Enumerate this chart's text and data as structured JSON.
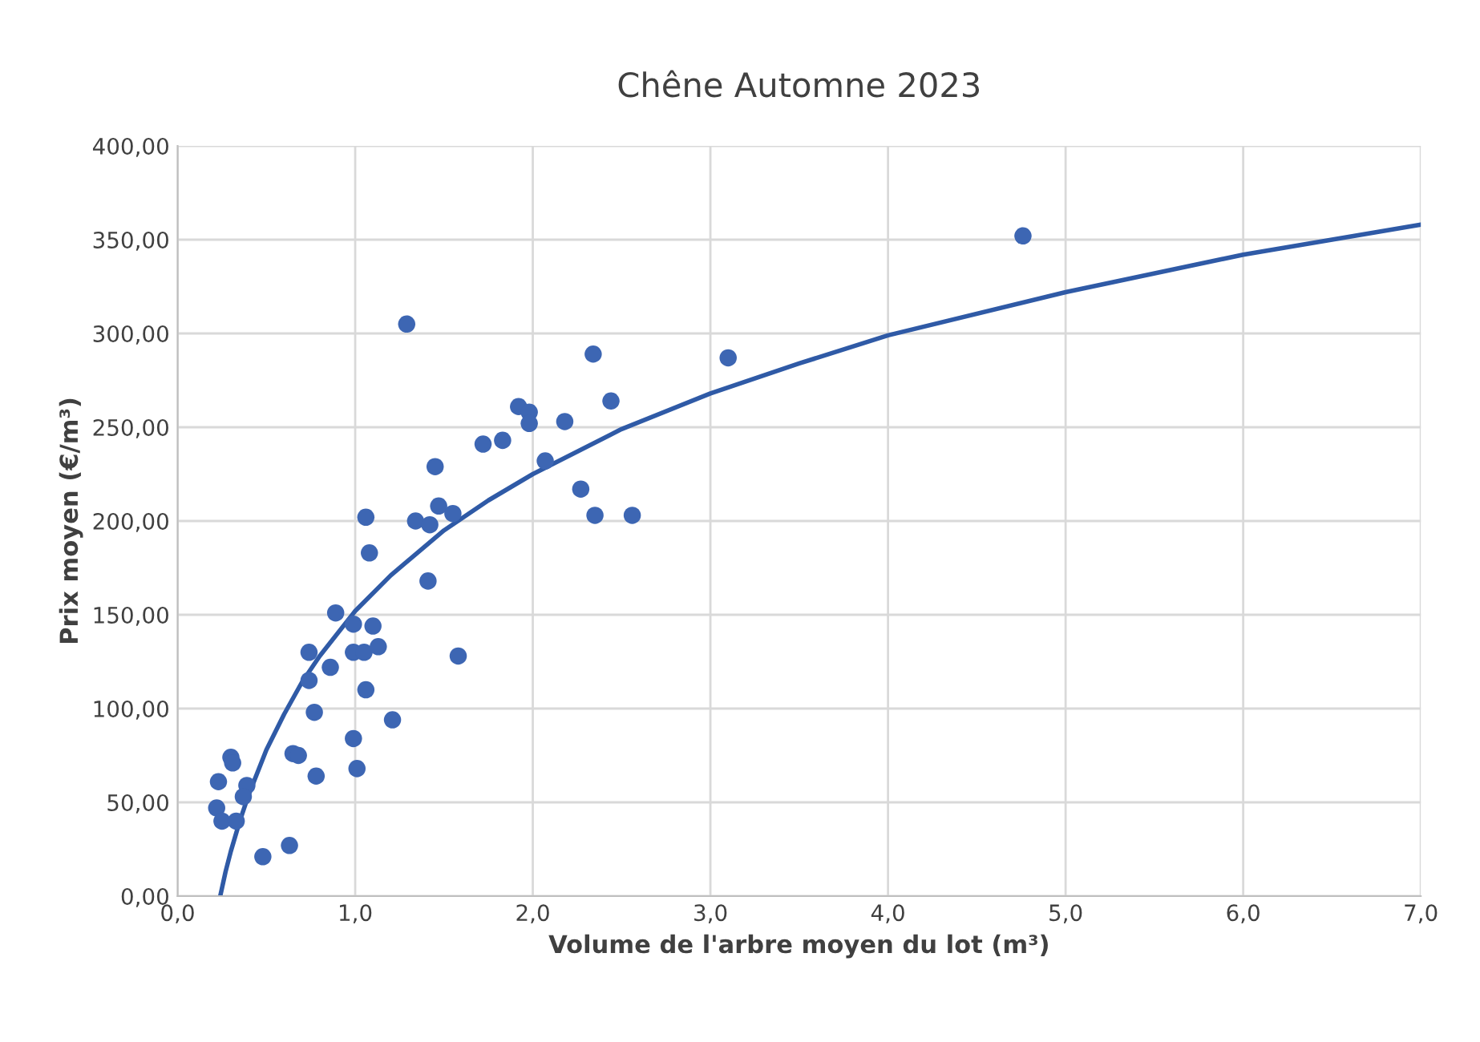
{
  "chart_data": {
    "type": "scatter",
    "title": "Chêne Automne 2023",
    "xlabel": "Volume de l'arbre moyen du lot (m³)",
    "ylabel": "Prix moyen (€/m³)",
    "xlim": [
      0,
      7
    ],
    "ylim": [
      0,
      400
    ],
    "xticks": [
      {
        "value": 0,
        "label": "0,0"
      },
      {
        "value": 1,
        "label": "1,0"
      },
      {
        "value": 2,
        "label": "2,0"
      },
      {
        "value": 3,
        "label": "3,0"
      },
      {
        "value": 4,
        "label": "4,0"
      },
      {
        "value": 5,
        "label": "5,0"
      },
      {
        "value": 6,
        "label": "6,0"
      },
      {
        "value": 7,
        "label": "7,0"
      }
    ],
    "yticks": [
      {
        "value": 0,
        "label": "0,00"
      },
      {
        "value": 50,
        "label": "50,00"
      },
      {
        "value": 100,
        "label": "100,00"
      },
      {
        "value": 150,
        "label": "150,00"
      },
      {
        "value": 200,
        "label": "200,00"
      },
      {
        "value": 250,
        "label": "250,00"
      },
      {
        "value": 300,
        "label": "300,00"
      },
      {
        "value": 350,
        "label": "350,00"
      },
      {
        "value": 400,
        "label": "400,00"
      }
    ],
    "grid": true,
    "marker": "circle",
    "series": [
      {
        "color": "#3d66b3",
        "x": [
          1.06,
          1.08,
          1.41,
          1.34,
          1.42,
          1.47,
          1.55,
          1.45,
          1.58,
          0.89,
          0.99,
          1.1,
          0.74,
          0.86,
          0.99,
          1.05,
          1.13,
          0.74,
          1.06,
          0.77,
          1.21,
          0.3,
          0.31,
          0.65,
          0.68,
          0.78,
          0.99,
          1.01,
          0.23,
          0.39,
          0.37,
          0.22,
          0.25,
          0.33,
          0.48,
          0.63,
          1.29,
          1.72,
          1.83,
          1.92,
          1.98,
          1.98,
          2.07,
          2.18,
          2.34,
          2.44,
          2.27,
          2.35,
          2.56,
          3.1,
          4.76
        ],
        "values": [
          202,
          183,
          168,
          200,
          198,
          208,
          204,
          229,
          128,
          151,
          145,
          144,
          130,
          122,
          130,
          130,
          133,
          115,
          110,
          98,
          94,
          74,
          71,
          76,
          75,
          64,
          84,
          68,
          61,
          59,
          53,
          47,
          40,
          40,
          21,
          27,
          305,
          241,
          243,
          261,
          258,
          252,
          232,
          253,
          289,
          264,
          217,
          203,
          203,
          287,
          352
        ]
      },
      {
        "type": "line",
        "color": "#2f5aa6",
        "marker": "none",
        "line_style": "solid",
        "x": [
          0.24,
          0.27,
          0.3,
          0.35,
          0.4,
          0.5,
          0.6,
          0.7,
          0.8,
          1,
          1.2,
          1.5,
          1.75,
          2,
          2.5,
          3,
          3.5,
          4,
          5,
          6,
          7
        ],
        "values": [
          0,
          13,
          24,
          40,
          54,
          78,
          97,
          114,
          128,
          152,
          171,
          195,
          211,
          225,
          249,
          268,
          284,
          299,
          322,
          342,
          358
        ]
      }
    ]
  }
}
